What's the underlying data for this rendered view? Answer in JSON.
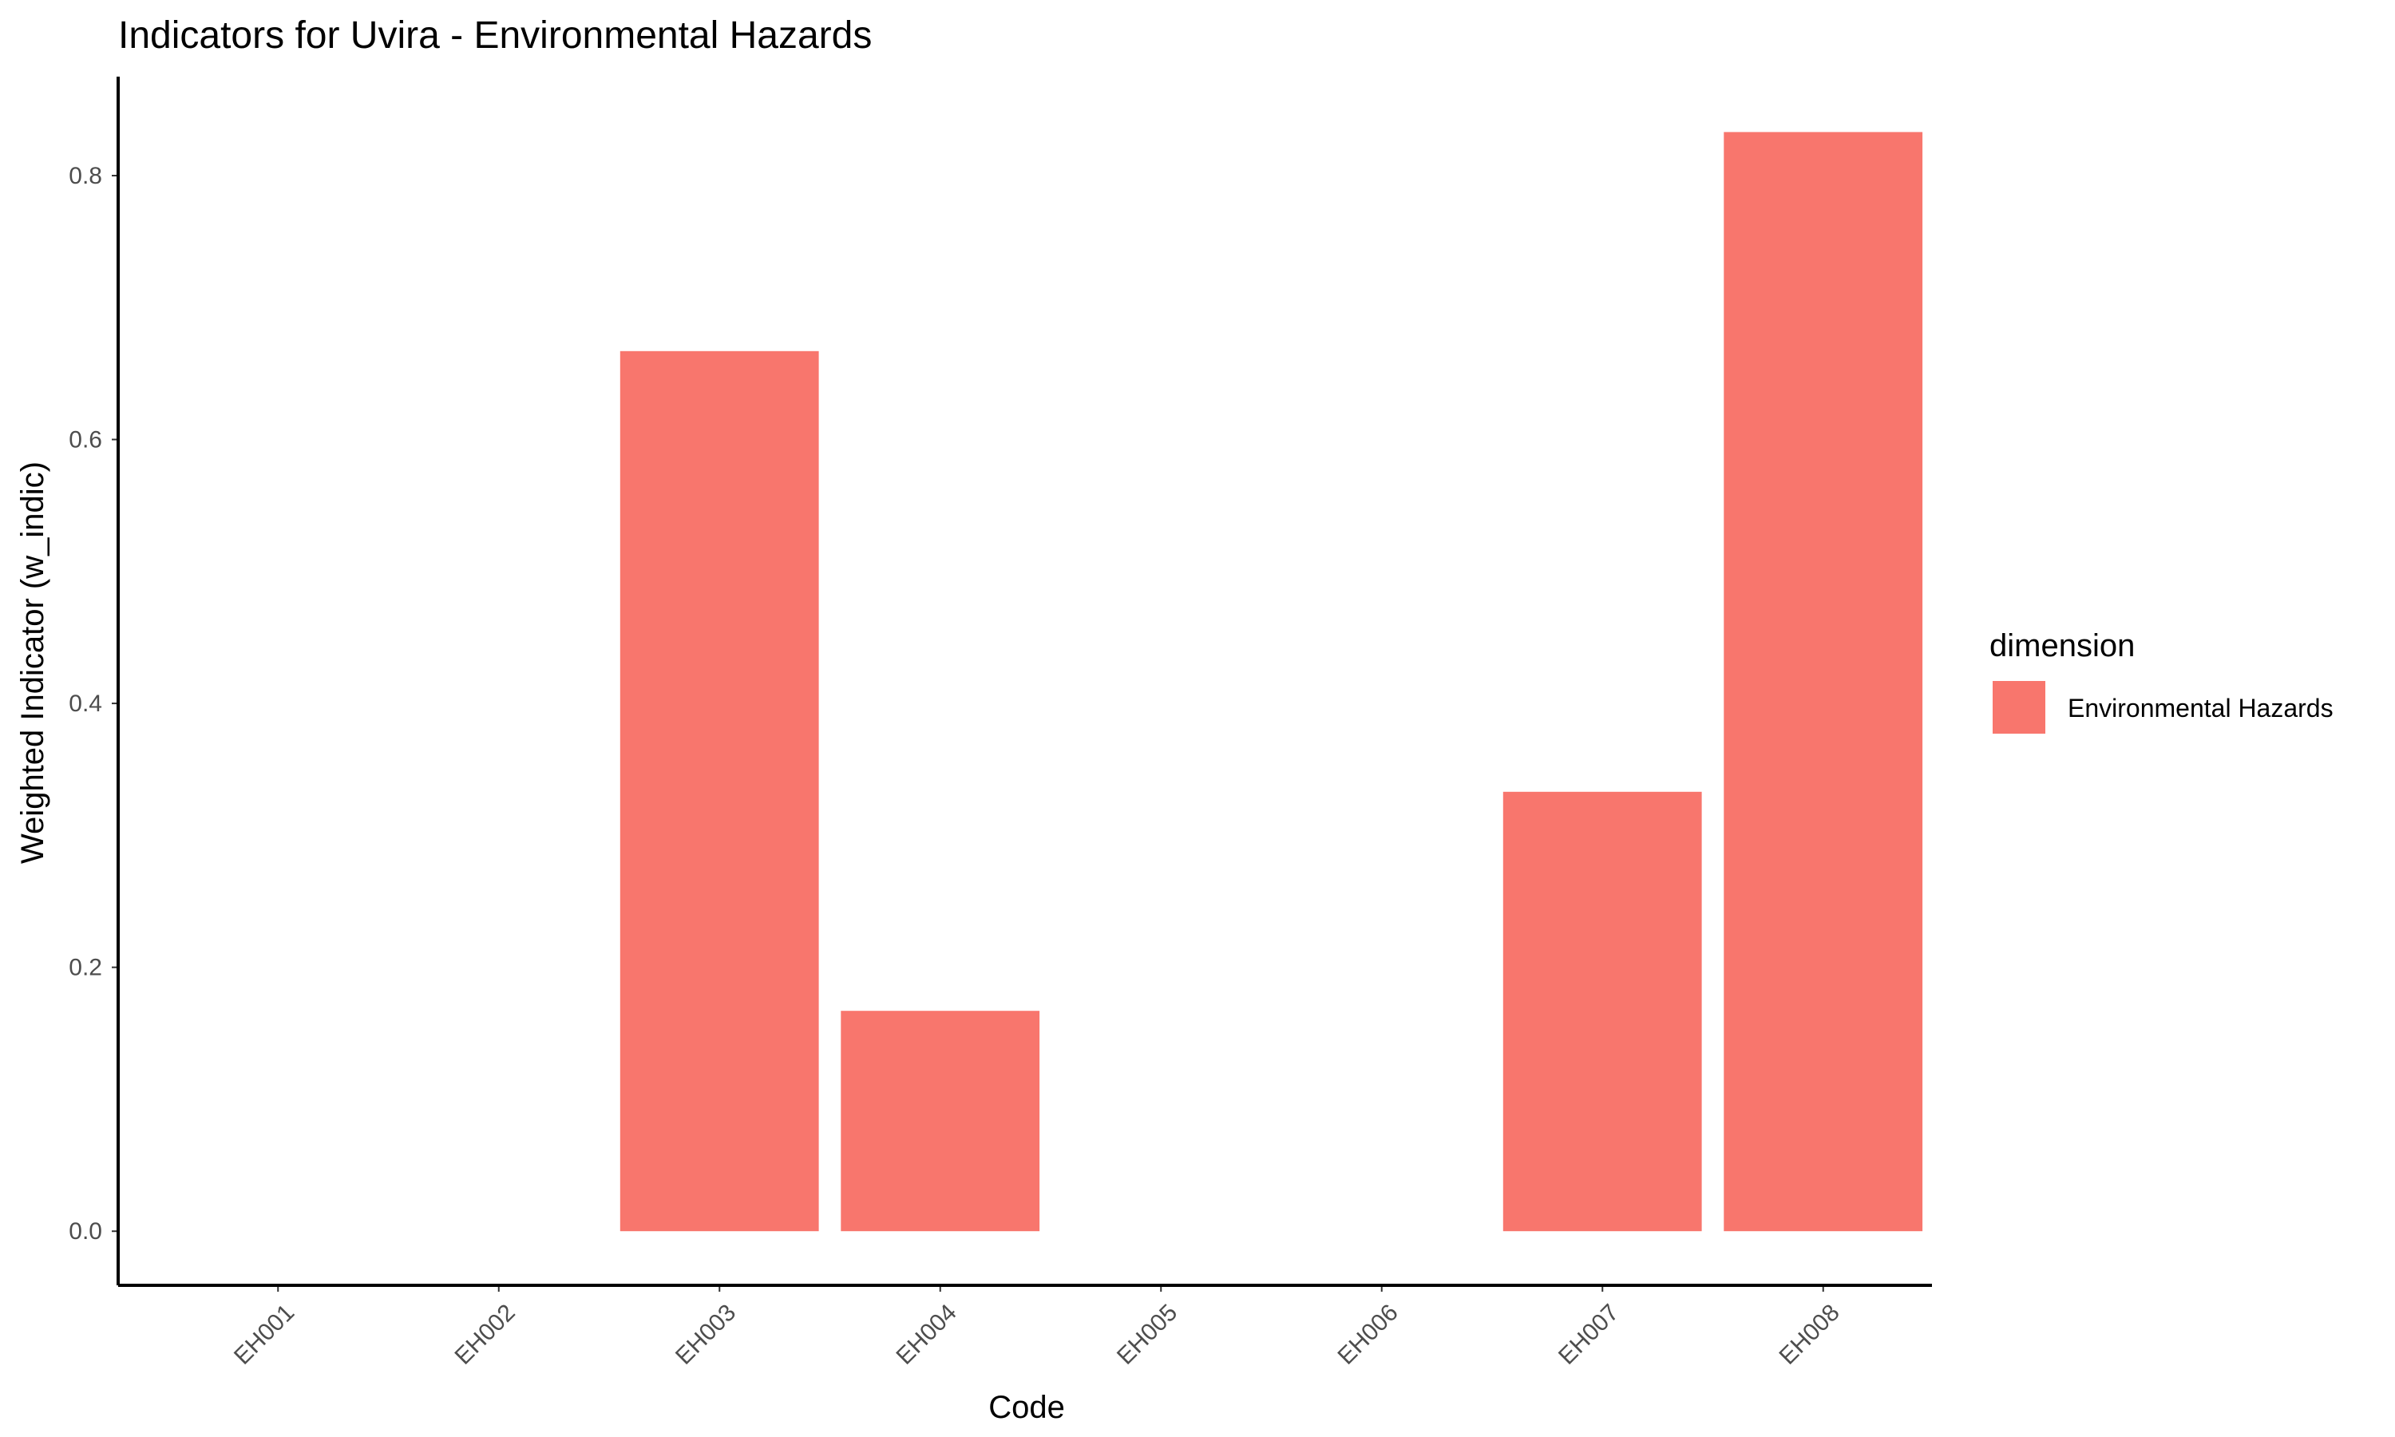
{
  "chart_data": {
    "type": "bar",
    "title": "Indicators for Uvira - Environmental Hazards",
    "xlabel": "Code",
    "ylabel": "Weighted Indicator (w_indic)",
    "categories": [
      "EH001",
      "EH002",
      "EH003",
      "EH004",
      "EH005",
      "EH006",
      "EH007",
      "EH008"
    ],
    "series": [
      {
        "name": "Environmental Hazards",
        "values": [
          0,
          0,
          0.667,
          0.167,
          0,
          0,
          0.333,
          0.833
        ]
      }
    ],
    "ylim": [
      -0.041,
      0.875
    ],
    "yticks": [
      0.0,
      0.2,
      0.4,
      0.6,
      0.8
    ],
    "ytick_labels": [
      "0.0",
      "0.2",
      "0.4",
      "0.6",
      "0.8"
    ],
    "grid": false,
    "legend": {
      "title": "dimension",
      "position": "right",
      "entries": [
        "Environmental Hazards"
      ]
    },
    "colors": {
      "bar": "#F8766D",
      "axis": "#000000",
      "tick_text": "#4d4d4d"
    }
  }
}
